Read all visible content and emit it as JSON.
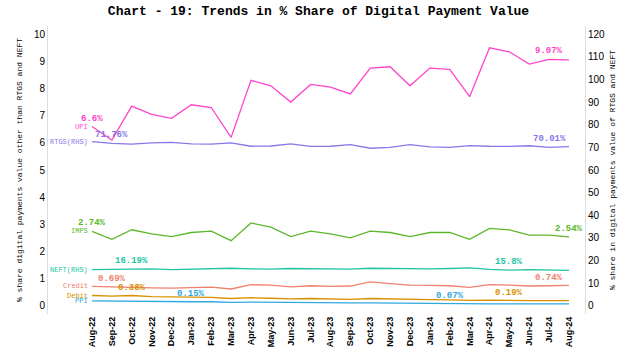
{
  "chart_data": {
    "type": "line",
    "title": "Chart - 19: Trends in % Share of Digital Payment Value",
    "y_label": "% share digital payments value other than RTGS and NEFT",
    "y2_label": "% share in digital payments value of RTGS and NEFT",
    "categories": [
      "Aug-22",
      "Sep-22",
      "Oct-22",
      "Nov-22",
      "Dec-22",
      "Jan-23",
      "Feb-23",
      "Mar-23",
      "Apr-23",
      "May-23",
      "Jun-23",
      "Jul-23",
      "Aug-23",
      "Sep-23",
      "Oct-23",
      "Nov-23",
      "Dec-23",
      "Jan-24",
      "Feb-24",
      "Mar-24",
      "Apr-24",
      "May-24",
      "Jun-24",
      "Jul-24",
      "Aug-24"
    ],
    "ylim": [
      -0.3,
      10.3
    ],
    "yticks": [
      0,
      1,
      2,
      3,
      4,
      5,
      6,
      7,
      8,
      9,
      10
    ],
    "y2lim": [
      -3.6,
      123.6
    ],
    "y2ticks": [
      0,
      10,
      20,
      30,
      40,
      50,
      60,
      70,
      80,
      90,
      100,
      110,
      120
    ],
    "grid": false,
    "series": [
      {
        "name": "UPI",
        "color": "#ff44cc",
        "axis": "y",
        "values": [
          6.6,
          6.1,
          7.35,
          7.05,
          6.9,
          7.4,
          7.3,
          6.2,
          8.3,
          8.1,
          7.5,
          8.15,
          8.05,
          7.8,
          8.75,
          8.8,
          8.1,
          8.75,
          8.7,
          7.7,
          9.5,
          9.35,
          8.9,
          9.07,
          9.05
        ]
      },
      {
        "name": "RTGS(RHS)",
        "color": "#8878e8",
        "axis": "y2",
        "values": [
          72.5,
          71.76,
          71.4,
          72,
          72.2,
          71.5,
          71.4,
          72,
          70.5,
          70.6,
          71.5,
          70.4,
          70.5,
          71.2,
          69.6,
          70,
          71.2,
          70.2,
          70,
          70.8,
          70.5,
          70.4,
          70.7,
          70.01,
          70.3
        ]
      },
      {
        "name": "IMPS",
        "color": "#5cb82a",
        "axis": "y",
        "values": [
          2.74,
          2.45,
          2.8,
          2.65,
          2.55,
          2.7,
          2.75,
          2.4,
          3.05,
          2.9,
          2.55,
          2.75,
          2.65,
          2.5,
          2.75,
          2.7,
          2.55,
          2.7,
          2.7,
          2.45,
          2.85,
          2.8,
          2.6,
          2.6,
          2.54
        ]
      },
      {
        "name": "NEFT(RHS)",
        "color": "#22c4a4",
        "axis": "y2",
        "values": [
          16.0,
          16.2,
          16.19,
          16.3,
          16.0,
          16.2,
          16.5,
          16.6,
          16.3,
          16.2,
          16.5,
          16.3,
          16.1,
          16.2,
          16.6,
          16.5,
          16.1,
          16.3,
          16.5,
          16.8,
          16.1,
          15.8,
          16.0,
          15.9,
          15.7
        ]
      },
      {
        "name": "Credit",
        "color": "#f08070",
        "axis": "y",
        "values": [
          0.72,
          0.69,
          0.68,
          0.66,
          0.65,
          0.67,
          0.69,
          0.62,
          0.78,
          0.76,
          0.7,
          0.74,
          0.72,
          0.73,
          0.88,
          0.82,
          0.76,
          0.75,
          0.74,
          0.68,
          0.78,
          0.76,
          0.73,
          0.74,
          0.75
        ]
      },
      {
        "name": "Debit",
        "color": "#d89000",
        "axis": "y",
        "values": [
          0.38,
          0.36,
          0.38,
          0.34,
          0.33,
          0.32,
          0.31,
          0.27,
          0.3,
          0.28,
          0.26,
          0.27,
          0.25,
          0.24,
          0.27,
          0.25,
          0.24,
          0.23,
          0.22,
          0.2,
          0.21,
          0.19,
          0.19,
          0.19,
          0.19
        ]
      },
      {
        "name": "PPI",
        "color": "#30a8e0",
        "axis": "y",
        "values": [
          0.18,
          0.17,
          0.17,
          0.16,
          0.16,
          0.15,
          0.15,
          0.13,
          0.14,
          0.13,
          0.12,
          0.12,
          0.11,
          0.11,
          0.11,
          0.1,
          0.09,
          0.09,
          0.07,
          0.07,
          0.07,
          0.07,
          0.07,
          0.07,
          0.07
        ]
      }
    ],
    "annotations": [
      {
        "series": "UPI",
        "category": "Aug-22",
        "text": "6.6%"
      },
      {
        "series": "UPI",
        "category": "Jul-24",
        "text": "9.07%"
      },
      {
        "series": "RTGS(RHS)",
        "category": "Sep-22",
        "text": "71.76%"
      },
      {
        "series": "RTGS(RHS)",
        "category": "Jul-24",
        "text": "70.01%"
      },
      {
        "series": "IMPS",
        "category": "Aug-22",
        "text": "2.74%"
      },
      {
        "series": "IMPS",
        "category": "Aug-24",
        "text": "2.54%"
      },
      {
        "series": "NEFT(RHS)",
        "category": "Oct-22",
        "text": "16.19%"
      },
      {
        "series": "NEFT(RHS)",
        "category": "May-24",
        "text": "15.8%"
      },
      {
        "series": "Credit",
        "category": "Sep-22",
        "text": "0.69%"
      },
      {
        "series": "Credit",
        "category": "Jul-24",
        "text": "0.74%"
      },
      {
        "series": "Debit",
        "category": "Oct-22",
        "text": "0.38%"
      },
      {
        "series": "Debit",
        "category": "May-24",
        "text": "0.19%"
      },
      {
        "series": "PPI",
        "category": "Jan-23",
        "text": "0.15%"
      },
      {
        "series": "PPI",
        "category": "Feb-24",
        "text": "0.07%"
      }
    ]
  }
}
